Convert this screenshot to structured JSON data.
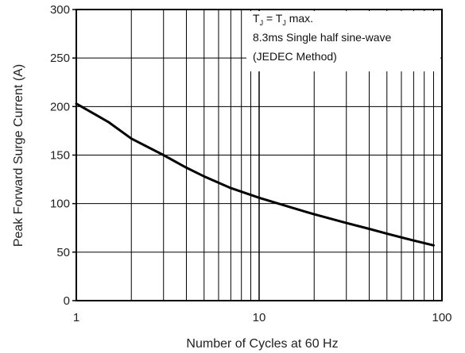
{
  "chart_data": {
    "type": "line",
    "xlabel": "Number of Cycles at 60 Hz",
    "ylabel": "Peak Forward Surge Current (A)",
    "xscale": "log",
    "xlim": [
      1,
      100
    ],
    "ylim": [
      0,
      300
    ],
    "grid": true,
    "x_ticks": [
      1,
      10,
      100
    ],
    "x_tick_labels": [
      "1",
      "10",
      "100"
    ],
    "y_ticks": [
      0,
      50,
      100,
      150,
      200,
      250,
      300
    ],
    "y_tick_labels": [
      "0",
      "50",
      "100",
      "150",
      "200",
      "250",
      "300"
    ],
    "annotation": {
      "line1_main": "T",
      "line1_sub1": "J",
      "line1_mid": " = T",
      "line1_sub2": "J",
      "line1_end": " max.",
      "line2": "8.3ms Single half sine-wave",
      "line3": "(JEDEC Method)"
    },
    "series": [
      {
        "x": [
          1,
          1.5,
          2,
          3,
          4,
          5,
          7,
          10,
          15,
          20,
          30,
          40,
          50,
          70,
          90
        ],
        "y": [
          203,
          184,
          167,
          150,
          137,
          128,
          116,
          106,
          96,
          89,
          80,
          74,
          69,
          62,
          57
        ]
      }
    ]
  }
}
